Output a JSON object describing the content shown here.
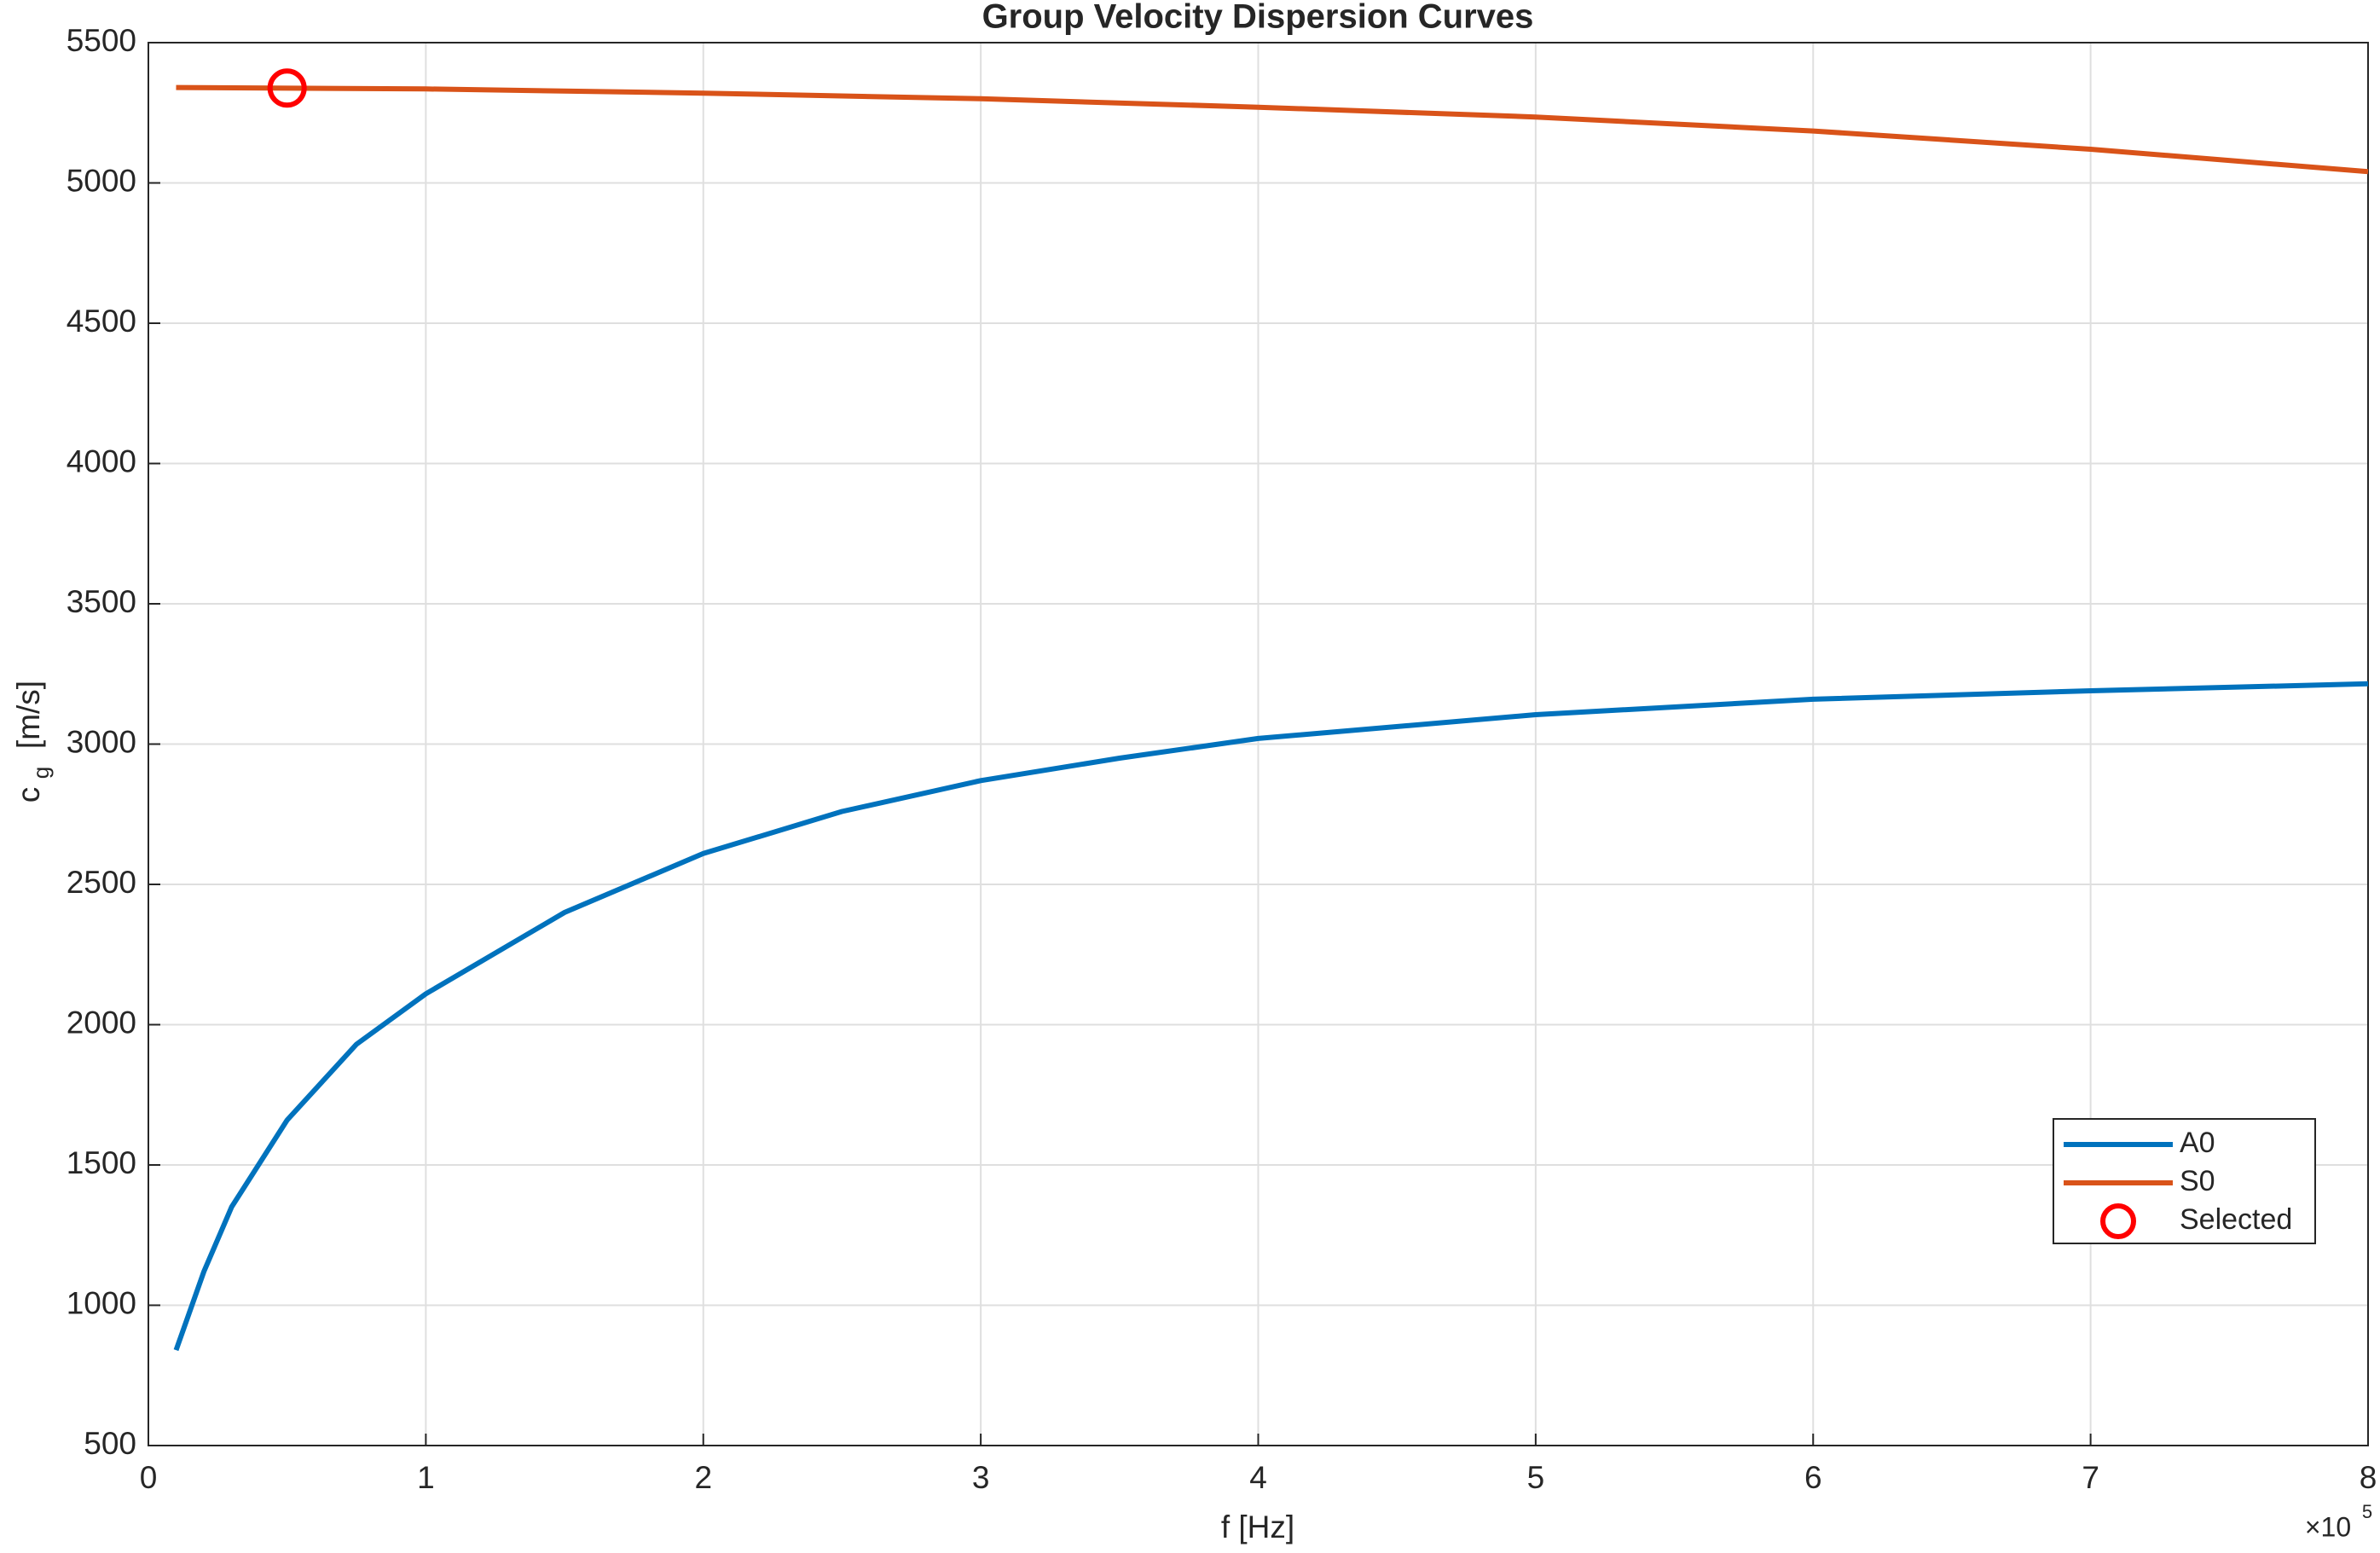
{
  "chart_data": {
    "type": "line",
    "title": "Group Velocity Dispersion Curves",
    "xlabel": "f [Hz]",
    "ylabel": {
      "main": "c",
      "sub": "g",
      "unit": "[m/s]"
    },
    "x_multiplier": {
      "base": "×10",
      "power": "5"
    },
    "xlim": [
      0,
      800000
    ],
    "xticks": [
      0,
      {
        "value": 100000,
        "label": "1"
      },
      {
        "value": 200000,
        "label": "2"
      },
      {
        "value": 300000,
        "label": "3"
      },
      {
        "value": 400000,
        "label": "4"
      },
      {
        "value": 500000,
        "label": "5"
      },
      {
        "value": 600000,
        "label": "6"
      },
      {
        "value": 700000,
        "label": "7"
      },
      {
        "value": 800000,
        "label": "8"
      }
    ],
    "ylim": [
      500,
      5500
    ],
    "yticks": [
      500,
      1000,
      1500,
      2000,
      2500,
      3000,
      3500,
      4000,
      4500,
      5000,
      5500
    ],
    "grid": true,
    "legend": "southeast",
    "series": [
      {
        "name": "A0",
        "color": "#0072bd",
        "x": [
          10000,
          20000,
          30000,
          50000,
          75000,
          100000,
          150000,
          200000,
          250000,
          300000,
          350000,
          400000,
          500000,
          600000,
          700000,
          800000
        ],
        "values": [
          840,
          1120,
          1350,
          1660,
          1930,
          2110,
          2400,
          2610,
          2760,
          2870,
          2950,
          3020,
          3105,
          3160,
          3190,
          3215
        ]
      },
      {
        "name": "S0",
        "color": "#d95319",
        "x": [
          10000,
          100000,
          200000,
          300000,
          400000,
          500000,
          600000,
          700000,
          800000
        ],
        "values": [
          5340,
          5335,
          5320,
          5300,
          5270,
          5235,
          5185,
          5120,
          5040
        ]
      },
      {
        "name": "Selected",
        "color": "#ff0000",
        "marker": "circle",
        "x": [
          50000
        ],
        "values": [
          5338
        ]
      }
    ]
  }
}
